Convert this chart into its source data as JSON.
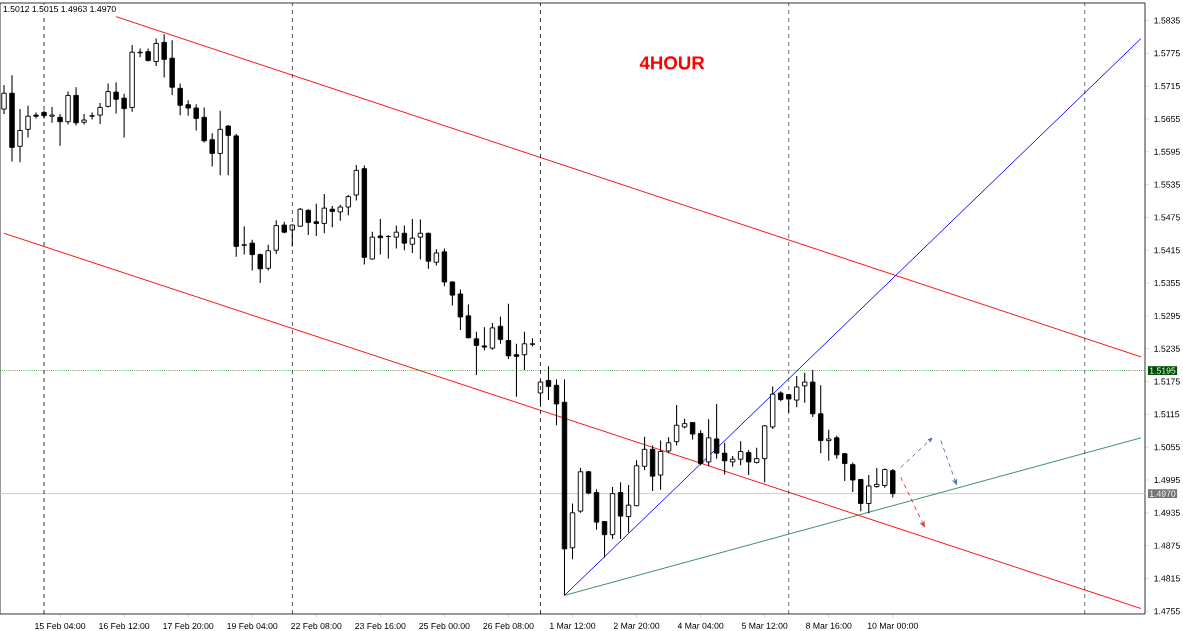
{
  "chart_data": {
    "type": "candlestick",
    "title": "4HOUR",
    "annotations": [
      "1.5012 1.5015 1.4963 1.4970"
    ],
    "color": "#000000",
    "categories": [
      null,
      null,
      null,
      null,
      null,
      null,
      null,
      "15 Feb 04:00",
      null,
      null,
      null,
      null,
      null,
      null,
      null,
      "16 Feb 12:00",
      null,
      null,
      null,
      null,
      null,
      null,
      null,
      "17 Feb 20:00",
      null,
      null,
      null,
      null,
      null,
      null,
      null,
      "19 Feb 04:00",
      null,
      null,
      null,
      null,
      null,
      null,
      null,
      "22 Feb 08:00",
      null,
      null,
      null,
      null,
      null,
      null,
      null,
      "23 Feb 16:00",
      null,
      null,
      null,
      null,
      null,
      null,
      null,
      "25 Feb 00:00",
      null,
      null,
      null,
      null,
      null,
      null,
      null,
      "26 Feb 08:00",
      null,
      null,
      null,
      null,
      null,
      null,
      null,
      "1 Mar 12:00",
      null,
      null,
      null,
      null,
      null,
      null,
      null,
      "2 Mar 20:00",
      null,
      null,
      null,
      null,
      null,
      null,
      null,
      "4 Mar 04:00",
      null,
      null,
      null,
      null,
      null,
      null,
      null,
      "5 Mar 12:00",
      null,
      null,
      null,
      null,
      null,
      null,
      null,
      "8 Mar 16:00",
      null,
      null,
      null,
      null,
      null,
      null,
      null,
      "10 Mar 00:00",
      null,
      null,
      null,
      null,
      null,
      null,
      null,
      null,
      null,
      null,
      null,
      null,
      null,
      null,
      null,
      null,
      null,
      null,
      null,
      null,
      null,
      null,
      null,
      null,
      null,
      null,
      null,
      null,
      null,
      null,
      null
    ],
    "ohlc": [
      [
        1.5673,
        1.5717,
        1.5664,
        1.5702
      ],
      [
        1.5702,
        1.5735,
        1.5577,
        1.5603
      ],
      [
        1.5605,
        1.5673,
        1.5576,
        1.5634
      ],
      [
        1.5636,
        1.5679,
        1.5621,
        1.566
      ],
      [
        1.5662,
        1.5667,
        1.5656,
        1.566
      ],
      [
        1.5667,
        1.567,
        1.5656,
        1.5661
      ],
      [
        1.566,
        1.5677,
        1.5648,
        1.5662
      ],
      [
        1.5658,
        1.5664,
        1.5606,
        1.565
      ],
      [
        1.565,
        1.5705,
        1.5645,
        1.5698
      ],
      [
        1.5698,
        1.5713,
        1.5643,
        1.5648
      ],
      [
        1.5649,
        1.5664,
        1.5645,
        1.5653
      ],
      [
        1.566,
        1.5667,
        1.5654,
        1.5661
      ],
      [
        1.5662,
        1.5684,
        1.5646,
        1.5676
      ],
      [
        1.5678,
        1.572,
        1.5676,
        1.5705
      ],
      [
        1.5704,
        1.5722,
        1.5665,
        1.5691
      ],
      [
        1.5693,
        1.5701,
        1.5621,
        1.5674
      ],
      [
        1.5676,
        1.579,
        1.5668,
        1.5777
      ],
      [
        1.5776,
        1.5784,
        1.5768,
        1.5777
      ],
      [
        1.5778,
        1.5784,
        1.576,
        1.5762
      ],
      [
        1.576,
        1.5802,
        1.5752,
        1.5793
      ],
      [
        1.5795,
        1.581,
        1.5731,
        1.5764
      ],
      [
        1.5766,
        1.5799,
        1.5699,
        1.5713
      ],
      [
        1.5711,
        1.572,
        1.5662,
        1.568
      ],
      [
        1.5681,
        1.5689,
        1.5661,
        1.5675
      ],
      [
        1.5675,
        1.5682,
        1.5634,
        1.5656
      ],
      [
        1.5658,
        1.5676,
        1.5612,
        1.5615
      ],
      [
        1.5617,
        1.5629,
        1.5568,
        1.5592
      ],
      [
        1.5592,
        1.567,
        1.5552,
        1.5636
      ],
      [
        1.5642,
        1.5644,
        1.5552,
        1.5625
      ],
      [
        1.5624,
        1.5628,
        1.5403,
        1.5422
      ],
      [
        1.5424,
        1.5459,
        1.5407,
        1.5425
      ],
      [
        1.5428,
        1.5434,
        1.5378,
        1.5407
      ],
      [
        1.5407,
        1.5409,
        1.5355,
        1.5381
      ],
      [
        1.5382,
        1.5425,
        1.5378,
        1.5414
      ],
      [
        1.5415,
        1.547,
        1.5408,
        1.546
      ],
      [
        1.5461,
        1.5467,
        1.5446,
        1.5448
      ],
      [
        1.5452,
        1.5462,
        1.5422,
        1.5461
      ],
      [
        1.5459,
        1.5492,
        1.5458,
        1.549
      ],
      [
        1.5488,
        1.549,
        1.5443,
        1.5466
      ],
      [
        1.5467,
        1.55,
        1.5441,
        1.5464
      ],
      [
        1.5464,
        1.5518,
        1.5446,
        1.5492
      ],
      [
        1.549,
        1.5496,
        1.5457,
        1.5486
      ],
      [
        1.5485,
        1.5498,
        1.5469,
        1.5494
      ],
      [
        1.5494,
        1.5516,
        1.5479,
        1.5513
      ],
      [
        1.5516,
        1.5571,
        1.5506,
        1.5561
      ],
      [
        1.5564,
        1.557,
        1.5389,
        1.5402
      ],
      [
        1.5399,
        1.5449,
        1.5398,
        1.5439
      ],
      [
        1.5441,
        1.5472,
        1.5407,
        1.5438
      ],
      [
        1.544,
        1.5443,
        1.54,
        1.544
      ],
      [
        1.5439,
        1.546,
        1.5418,
        1.5448
      ],
      [
        1.5446,
        1.546,
        1.5415,
        1.5428
      ],
      [
        1.5426,
        1.5472,
        1.541,
        1.5437
      ],
      [
        1.5439,
        1.5471,
        1.5398,
        1.5446
      ],
      [
        1.5446,
        1.5447,
        1.5381,
        1.5395
      ],
      [
        1.5393,
        1.5417,
        1.5387,
        1.541
      ],
      [
        1.5412,
        1.5418,
        1.5349,
        1.5357
      ],
      [
        1.5357,
        1.5358,
        1.5314,
        1.5333
      ],
      [
        1.5335,
        1.5343,
        1.5269,
        1.5293
      ],
      [
        1.5295,
        1.5316,
        1.5254,
        1.5255
      ],
      [
        1.5253,
        1.5266,
        1.5187,
        1.5241
      ],
      [
        1.524,
        1.5274,
        1.5232,
        1.5238
      ],
      [
        1.5236,
        1.5282,
        1.5233,
        1.5273
      ],
      [
        1.5276,
        1.5294,
        1.5244,
        1.5252
      ],
      [
        1.525,
        1.5317,
        1.5216,
        1.5222
      ],
      [
        1.5224,
        1.5244,
        1.5147,
        1.5221
      ],
      [
        1.5224,
        1.5266,
        1.5196,
        1.5244
      ],
      [
        1.5243,
        1.5254,
        1.5239,
        1.5244
      ],
      [
        1.5154,
        1.5177,
        1.5129,
        1.5174
      ],
      [
        1.5177,
        1.5203,
        1.5141,
        1.5166
      ],
      [
        1.5168,
        1.5179,
        1.5095,
        1.5134
      ],
      [
        1.5137,
        1.5179,
        1.4784,
        1.4869
      ],
      [
        1.4871,
        1.4952,
        1.485,
        1.4935
      ],
      [
        1.4938,
        1.5017,
        1.4935,
        1.501
      ],
      [
        1.501,
        1.5011,
        1.4969,
        1.4971
      ],
      [
        1.4972,
        1.4978,
        1.4904,
        1.4918
      ],
      [
        1.4919,
        1.492,
        1.4853,
        1.4895
      ],
      [
        1.4895,
        1.4982,
        1.4887,
        1.497
      ],
      [
        1.4972,
        1.4991,
        1.4887,
        1.4929
      ],
      [
        1.4928,
        1.4986,
        1.4899,
        1.4949
      ],
      [
        1.4948,
        1.5031,
        1.4947,
        1.5021
      ],
      [
        1.502,
        1.5074,
        1.5013,
        1.5051
      ],
      [
        1.5051,
        1.5058,
        1.4975,
        1.5002
      ],
      [
        1.5004,
        1.5067,
        1.4977,
        1.5047
      ],
      [
        1.5048,
        1.5073,
        1.5044,
        1.5063
      ],
      [
        1.5065,
        1.5132,
        1.5058,
        1.5095
      ],
      [
        1.5092,
        1.5107,
        1.5089,
        1.5098
      ],
      [
        1.51,
        1.5101,
        1.5069,
        1.5079
      ],
      [
        1.508,
        1.5086,
        1.5022,
        1.5025
      ],
      [
        1.5028,
        1.5106,
        1.502,
        1.5072
      ],
      [
        1.507,
        1.5134,
        1.5034,
        1.5044
      ],
      [
        1.5044,
        1.5063,
        1.5005,
        1.503
      ],
      [
        1.5028,
        1.5039,
        1.5019,
        1.5033
      ],
      [
        1.5033,
        1.5066,
        1.5022,
        1.5047
      ],
      [
        1.5045,
        1.505,
        1.5004,
        1.5028
      ],
      [
        1.5027,
        1.5054,
        1.5025,
        1.5034
      ],
      [
        1.5034,
        1.5095,
        1.4991,
        1.5094
      ],
      [
        1.5092,
        1.5166,
        1.5088,
        1.5152
      ],
      [
        1.5154,
        1.5157,
        1.5139,
        1.5142
      ],
      [
        1.5151,
        1.5152,
        1.5118,
        1.5143
      ],
      [
        1.5141,
        1.5185,
        1.5128,
        1.5165
      ],
      [
        1.5167,
        1.5191,
        1.5136,
        1.5174
      ],
      [
        1.5174,
        1.5196,
        1.511,
        1.5116
      ],
      [
        1.5116,
        1.5168,
        1.5044,
        1.5067
      ],
      [
        1.5067,
        1.5087,
        1.503,
        1.507
      ],
      [
        1.5072,
        1.5076,
        1.5034,
        1.5041
      ],
      [
        1.5043,
        1.5044,
        1.4993,
        1.5025
      ],
      [
        1.5023,
        1.5027,
        1.4973,
        1.4995
      ],
      [
        1.4996,
        1.4997,
        1.4938,
        1.4952
      ],
      [
        1.4952,
        1.5004,
        1.4934,
        1.4984
      ],
      [
        1.4983,
        1.5017,
        1.4981,
        1.4987
      ],
      [
        1.4985,
        1.5016,
        1.4981,
        1.5014
      ],
      [
        1.5012,
        1.5015,
        1.4963,
        1.497
      ],
      null,
      null,
      null,
      null,
      null,
      null,
      null,
      null,
      null,
      null,
      null,
      null,
      null,
      null,
      null,
      null,
      null,
      null,
      null,
      null,
      null,
      null,
      null,
      null,
      null,
      null,
      null,
      null,
      null,
      null,
      null
    ],
    "series": [
      {
        "type": "line",
        "color": "#ff0000",
        "line_style": "solid",
        "values": [
          null,
          null,
          null,
          null,
          null,
          null,
          null,
          null,
          null,
          null,
          null,
          null,
          null,
          null,
          1.5842,
          null,
          null,
          null,
          null,
          null,
          null,
          null,
          null,
          null,
          null,
          null,
          null,
          null,
          null,
          null,
          null,
          null,
          null,
          null,
          null,
          null,
          null,
          null,
          null,
          null,
          null,
          null,
          null,
          null,
          null,
          null,
          null,
          null,
          null,
          null,
          null,
          null,
          null,
          null,
          null,
          null,
          null,
          null,
          null,
          null,
          null,
          null,
          null,
          null,
          null,
          null,
          null,
          null,
          null,
          null,
          null,
          null,
          null,
          null,
          null,
          null,
          null,
          null,
          null,
          null,
          null,
          null,
          null,
          null,
          null,
          null,
          null,
          null,
          null,
          null,
          null,
          null,
          null,
          null,
          null,
          null,
          null,
          null,
          null,
          null,
          null,
          null,
          null,
          null,
          null,
          null,
          null,
          null,
          null,
          null,
          null,
          null,
          null,
          null,
          null,
          null,
          null,
          null,
          null,
          null,
          null,
          null,
          null,
          null,
          null,
          null,
          null,
          null,
          null,
          null,
          null,
          null,
          null,
          null,
          null,
          null,
          null,
          null,
          null,
          null,
          null,
          null,
          1.522
        ]
      },
      {
        "type": "line",
        "color": "#ff0000",
        "line_style": "solid",
        "values": [
          1.5446,
          null,
          null,
          null,
          null,
          null,
          null,
          null,
          null,
          null,
          null,
          null,
          null,
          null,
          null,
          null,
          null,
          null,
          null,
          null,
          null,
          null,
          null,
          null,
          null,
          null,
          null,
          null,
          null,
          null,
          null,
          null,
          null,
          null,
          null,
          null,
          null,
          null,
          null,
          null,
          null,
          null,
          null,
          null,
          null,
          null,
          null,
          null,
          null,
          null,
          null,
          null,
          null,
          null,
          null,
          null,
          null,
          null,
          null,
          null,
          null,
          null,
          null,
          null,
          null,
          null,
          null,
          null,
          null,
          null,
          null,
          null,
          null,
          null,
          null,
          null,
          null,
          null,
          null,
          null,
          null,
          null,
          null,
          null,
          null,
          null,
          null,
          null,
          null,
          null,
          null,
          null,
          null,
          null,
          null,
          null,
          null,
          null,
          null,
          null,
          null,
          null,
          null,
          null,
          null,
          null,
          null,
          null,
          null,
          null,
          null,
          null,
          null,
          null,
          null,
          null,
          null,
          null,
          null,
          null,
          null,
          null,
          null,
          null,
          null,
          null,
          null,
          null,
          null,
          null,
          null,
          null,
          null,
          null,
          null,
          null,
          null,
          null,
          null,
          null,
          null,
          null,
          1.476
        ]
      },
      {
        "type": "line",
        "color": "#0000ff",
        "line_style": "solid",
        "values": [
          null,
          null,
          null,
          null,
          null,
          null,
          null,
          null,
          null,
          null,
          null,
          null,
          null,
          null,
          null,
          null,
          null,
          null,
          null,
          null,
          null,
          null,
          null,
          null,
          null,
          null,
          null,
          null,
          null,
          null,
          null,
          null,
          null,
          null,
          null,
          null,
          null,
          null,
          null,
          null,
          null,
          null,
          null,
          null,
          null,
          null,
          null,
          null,
          null,
          null,
          null,
          null,
          null,
          null,
          null,
          null,
          null,
          null,
          null,
          null,
          null,
          null,
          null,
          null,
          null,
          null,
          null,
          null,
          null,
          null,
          1.4784,
          null,
          null,
          null,
          null,
          null,
          null,
          null,
          null,
          null,
          null,
          null,
          null,
          null,
          null,
          null,
          null,
          null,
          null,
          null,
          null,
          null,
          null,
          null,
          null,
          null,
          null,
          null,
          null,
          null,
          null,
          null,
          null,
          null,
          null,
          null,
          null,
          null,
          null,
          null,
          null,
          null,
          null,
          null,
          null,
          null,
          null,
          null,
          null,
          null,
          null,
          null,
          null,
          null,
          null,
          null,
          null,
          null,
          null,
          null,
          null,
          null,
          null,
          null,
          null,
          null,
          null,
          null,
          null,
          null,
          null,
          null,
          1.5802
        ]
      },
      {
        "type": "line",
        "color": "#2e8b57",
        "line_style": "solid",
        "values": [
          null,
          null,
          null,
          null,
          null,
          null,
          null,
          null,
          null,
          null,
          null,
          null,
          null,
          null,
          null,
          null,
          null,
          null,
          null,
          null,
          null,
          null,
          null,
          null,
          null,
          null,
          null,
          null,
          null,
          null,
          null,
          null,
          null,
          null,
          null,
          null,
          null,
          null,
          null,
          null,
          null,
          null,
          null,
          null,
          null,
          null,
          null,
          null,
          null,
          null,
          null,
          null,
          null,
          null,
          null,
          null,
          null,
          null,
          null,
          null,
          null,
          null,
          null,
          null,
          null,
          null,
          null,
          null,
          null,
          null,
          1.4784,
          null,
          null,
          null,
          null,
          null,
          null,
          null,
          null,
          null,
          null,
          null,
          null,
          null,
          null,
          null,
          null,
          null,
          null,
          null,
          null,
          null,
          null,
          null,
          null,
          null,
          null,
          null,
          null,
          null,
          null,
          null,
          null,
          null,
          null,
          null,
          null,
          null,
          null,
          null,
          null,
          null,
          null,
          null,
          null,
          null,
          null,
          null,
          null,
          null,
          null,
          null,
          null,
          null,
          null,
          null,
          null,
          null,
          null,
          null,
          null,
          null,
          null,
          null,
          null,
          null,
          null,
          null,
          null,
          null,
          null,
          null,
          1.5072
        ]
      }
    ],
    "ref_lines": [
      {
        "axis": "y",
        "value": 1.5195,
        "label": "1.5195",
        "color": "#008000",
        "line_style": "dotted"
      },
      {
        "axis": "y",
        "value": 1.497,
        "label": "1.4970",
        "color": "#c0c0c0",
        "line_style": "solid"
      }
    ],
    "ylim": [
      1.475,
      1.5867
    ],
    "yticks": [
      1.4755,
      1.4815,
      1.4875,
      1.4935,
      1.4995,
      1.5055,
      1.5115,
      1.5175,
      1.5235,
      1.5295,
      1.5355,
      1.5415,
      1.5475,
      1.5535,
      1.5595,
      1.5655,
      1.5715,
      1.5775,
      1.5835
    ]
  }
}
